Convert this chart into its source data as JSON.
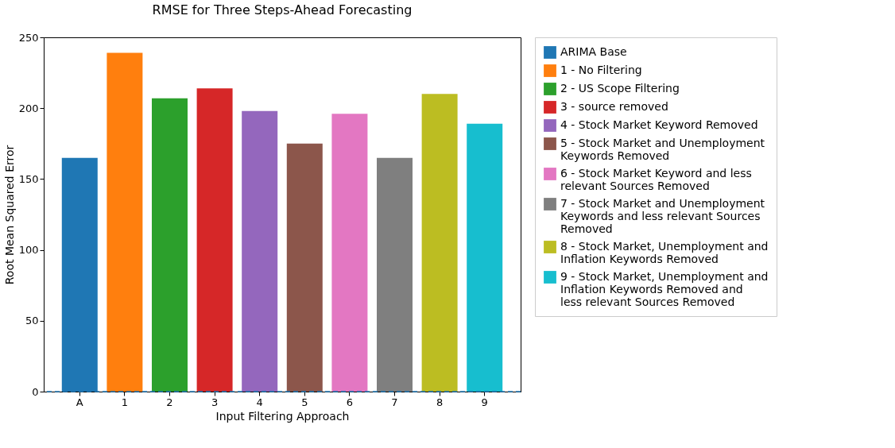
{
  "chart_data": {
    "type": "bar",
    "title": "RMSE for Three Steps-Ahead Forecasting",
    "xlabel": "Input Filtering Approach",
    "ylabel": "Root Mean Squared Error",
    "categories": [
      "A",
      "1",
      "2",
      "3",
      "4",
      "5",
      "6",
      "7",
      "8",
      "9"
    ],
    "series": [
      {
        "name": "ARIMA Base",
        "color": "#1f77b4",
        "values": [
          165,
          null,
          null,
          null,
          null,
          null,
          null,
          null,
          null,
          null
        ]
      },
      {
        "name": "1 - No Filtering",
        "color": "#ff7f0e",
        "values": [
          null,
          239,
          null,
          null,
          null,
          null,
          null,
          null,
          null,
          null
        ]
      },
      {
        "name": "2 - US Scope Filtering",
        "color": "#2ca02c",
        "values": [
          null,
          null,
          207,
          null,
          null,
          null,
          null,
          null,
          null,
          null
        ]
      },
      {
        "name": "3 - source removed",
        "color": "#d62728",
        "values": [
          null,
          null,
          null,
          214,
          null,
          null,
          null,
          null,
          null,
          null
        ]
      },
      {
        "name": "4 - Stock Market Keyword Removed",
        "color": "#9467bd",
        "values": [
          null,
          null,
          null,
          null,
          198,
          null,
          null,
          null,
          null,
          null
        ]
      },
      {
        "name": "5 - Stock Market and Unemployment Keywords Removed",
        "color": "#8c564b",
        "values": [
          null,
          null,
          null,
          null,
          null,
          175,
          null,
          null,
          null,
          null
        ]
      },
      {
        "name": "6 - Stock Market Keyword and less relevant Sources Removed",
        "color": "#e377c2",
        "values": [
          null,
          null,
          null,
          null,
          null,
          null,
          196,
          null,
          null,
          null
        ]
      },
      {
        "name": "7 - Stock Market and Unemployment Keywords and less relevant Sources Removed",
        "color": "#7f7f7f",
        "values": [
          null,
          null,
          null,
          null,
          null,
          null,
          null,
          165,
          null,
          null
        ]
      },
      {
        "name": "8 - Stock Market, Unemployment and Inflation Keywords Removed",
        "color": "#bcbd22",
        "values": [
          null,
          null,
          null,
          null,
          null,
          null,
          null,
          null,
          210,
          null
        ]
      },
      {
        "name": "9 - Stock Market, Unemployment and Inflation Keywords Removed and less relevant Sources Removed",
        "color": "#17becf",
        "values": [
          null,
          null,
          null,
          null,
          null,
          null,
          null,
          null,
          null,
          189
        ]
      }
    ],
    "ylim": [
      0,
      250
    ],
    "yticks": [
      0,
      50,
      100,
      150,
      200,
      250
    ],
    "ref_lines": [
      {
        "axis": "y",
        "value": 0,
        "color": "#1f77b4",
        "line_style": "dashed"
      }
    ],
    "grid": false,
    "legend": "right"
  }
}
